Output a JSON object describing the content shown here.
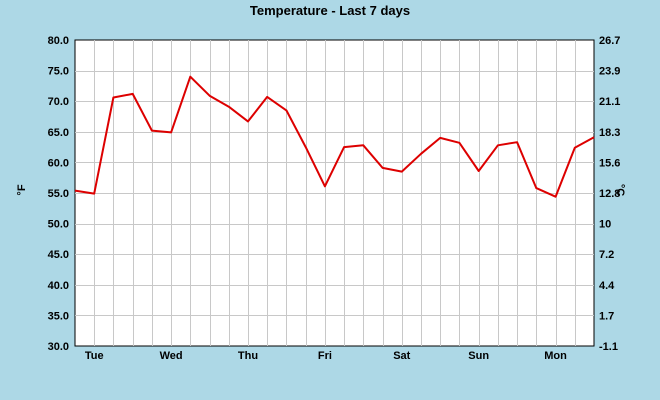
{
  "chart_data": {
    "type": "line",
    "title": "Temperature - Last 7 days",
    "ylabel_left": "°F",
    "ylabel_right": "°C",
    "ylim_left": [
      30,
      80
    ],
    "ylim_right": [
      -1.1,
      26.7
    ],
    "yticks_left": [
      "80.0",
      "75.0",
      "70.0",
      "65.0",
      "60.0",
      "55.0",
      "50.0",
      "45.0",
      "40.0",
      "35.0",
      "30.0"
    ],
    "yticks_right": [
      "26.7",
      "23.9",
      "21.1",
      "18.3",
      "15.6",
      "12.8",
      "10",
      "7.2",
      "4.4",
      "1.7",
      "-1.1"
    ],
    "day_labels": [
      "Tue",
      "Wed",
      "Thu",
      "Fri",
      "Sat",
      "Sun",
      "Mon"
    ],
    "x_range": [
      0,
      27
    ],
    "grid": true,
    "series": [
      {
        "color": "#dd0000",
        "x": [
          0,
          1,
          2,
          3,
          4,
          5,
          6,
          7,
          8,
          9,
          10,
          11,
          12,
          13,
          14,
          15,
          16,
          17,
          18,
          19,
          20,
          21,
          22,
          23,
          24,
          25,
          26,
          27
        ],
        "values": [
          55.4,
          54.9,
          70.6,
          71.2,
          65.2,
          64.9,
          74.0,
          70.9,
          69.1,
          66.7,
          70.7,
          68.5,
          62.5,
          56.1,
          62.5,
          62.8,
          59.1,
          58.5,
          61.4,
          64.0,
          63.2,
          58.6,
          62.8,
          63.3,
          55.8,
          54.4,
          62.4,
          64.1
        ]
      }
    ]
  }
}
